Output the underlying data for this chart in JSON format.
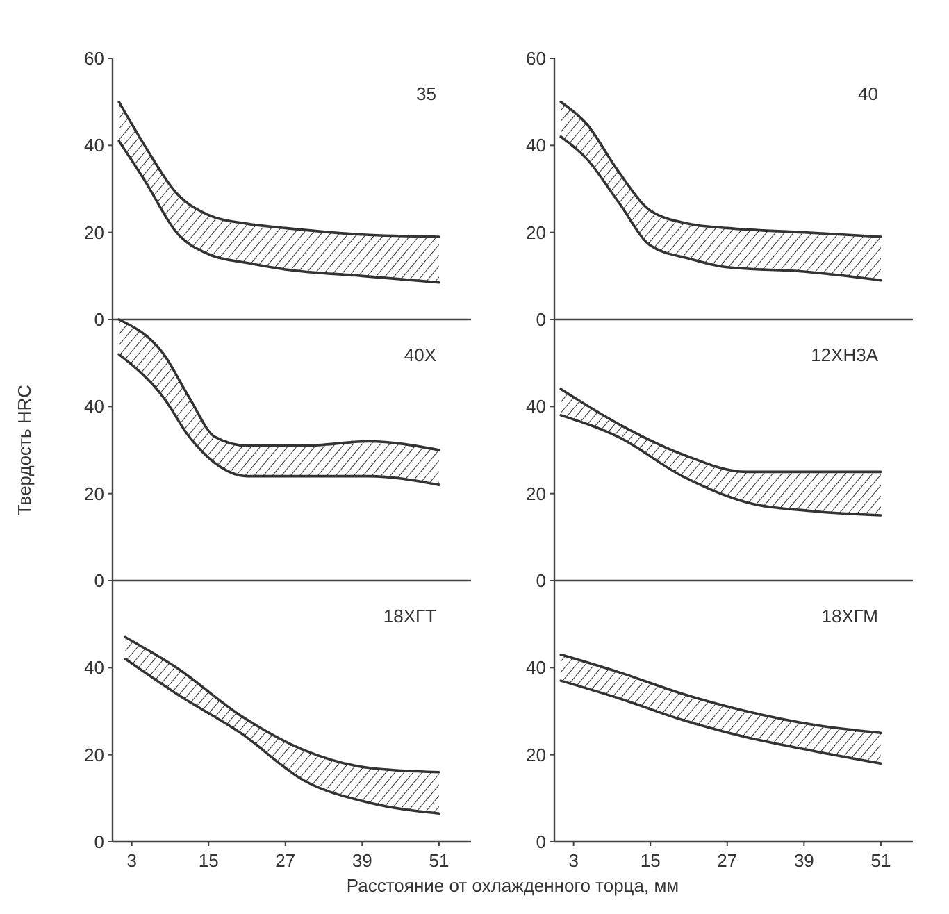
{
  "chart_data": [
    {
      "type": "line",
      "title": "35",
      "x": [
        1,
        5,
        10,
        15,
        21,
        27,
        39,
        51
      ],
      "xlim": [
        0,
        56
      ],
      "xticks": [
        3,
        15,
        27,
        39,
        51
      ],
      "ylim": [
        0,
        60
      ],
      "yticks": [
        0,
        20,
        40,
        60
      ],
      "tick_labels": "y",
      "series": [
        {
          "color": "#333333",
          "values": [
            41,
            32,
            20,
            15,
            13,
            11.5,
            10,
            8.5
          ]
        },
        {
          "color": "#333333",
          "values": [
            50,
            40,
            29,
            24,
            22,
            21,
            19.5,
            19
          ],
          "lower": [
            41,
            32,
            20,
            15,
            13,
            11.5,
            10,
            8.5
          ],
          "upper": [
            50,
            40,
            29,
            24,
            22,
            21,
            19.5,
            19
          ]
        }
      ]
    },
    {
      "type": "line",
      "title": "40",
      "x": [
        1,
        5,
        10,
        15,
        21,
        27,
        39,
        51
      ],
      "xlim": [
        0,
        56
      ],
      "xticks": [
        3,
        15,
        27,
        39,
        51
      ],
      "ylim": [
        0,
        60
      ],
      "yticks": [
        0,
        20,
        40,
        60
      ],
      "tick_labels": "y",
      "series": [
        {
          "color": "#333333",
          "values": [
            42,
            37,
            27,
            17,
            14,
            12,
            11,
            9
          ]
        },
        {
          "color": "#333333",
          "values": [
            50,
            45,
            34,
            25,
            22,
            21,
            20,
            19
          ],
          "lower": [
            42,
            37,
            27,
            17,
            14,
            12,
            11,
            9
          ],
          "upper": [
            50,
            45,
            34,
            25,
            22,
            21,
            20,
            19
          ]
        }
      ]
    },
    {
      "type": "line",
      "title": "40X",
      "ylabel": "Твердость HRC",
      "x": [
        1,
        8,
        12,
        16,
        21,
        30,
        40,
        51
      ],
      "xlim": [
        0,
        56
      ],
      "xticks": [
        3,
        15,
        27,
        39,
        51
      ],
      "ylim": [
        0,
        60
      ],
      "yticks": [
        0,
        20,
        40
      ],
      "tick_labels": "y",
      "series": [
        {
          "color": "#333333",
          "values": [
            52,
            42,
            33,
            27,
            24,
            24,
            24,
            22
          ]
        },
        {
          "color": "#333333",
          "values": [
            60,
            52,
            42,
            33,
            31,
            31,
            32,
            30
          ],
          "lower": [
            52,
            42,
            33,
            27,
            24,
            24,
            24,
            22
          ],
          "upper": [
            60,
            52,
            42,
            33,
            31,
            31,
            32,
            30
          ]
        }
      ]
    },
    {
      "type": "line",
      "title": "12ХН3А",
      "x": [
        1,
        10,
        20,
        30,
        40,
        51
      ],
      "xlim": [
        0,
        56
      ],
      "xticks": [
        3,
        15,
        27,
        39,
        51
      ],
      "ylim": [
        0,
        60
      ],
      "yticks": [
        0,
        20,
        40
      ],
      "tick_labels": "y",
      "series": [
        {
          "color": "#333333",
          "values": [
            38,
            33,
            24,
            18,
            16,
            15
          ]
        },
        {
          "color": "#333333",
          "values": [
            44,
            36,
            29,
            25,
            25,
            25
          ],
          "lower": [
            38,
            33,
            24,
            18,
            16,
            15
          ],
          "upper": [
            44,
            36,
            29,
            25,
            25,
            25
          ]
        }
      ]
    },
    {
      "type": "line",
      "title": "18ХГТ",
      "xlabel": "Расстояние от охлажденного торца, мм",
      "x": [
        2,
        10,
        20,
        30,
        40,
        51
      ],
      "xlim": [
        0,
        56
      ],
      "xticks": [
        3,
        15,
        27,
        39,
        51
      ],
      "ylim": [
        0,
        60
      ],
      "yticks": [
        0,
        20,
        40
      ],
      "series": [
        {
          "color": "#333333",
          "values": [
            42,
            34,
            25,
            14,
            9,
            6.5
          ]
        },
        {
          "color": "#333333",
          "values": [
            47,
            40,
            29,
            21,
            17,
            16
          ],
          "lower": [
            42,
            34,
            25,
            14,
            9,
            6.5
          ],
          "upper": [
            47,
            40,
            29,
            21,
            17,
            16
          ]
        }
      ]
    },
    {
      "type": "line",
      "title": "18ХГМ",
      "x": [
        1,
        10,
        20,
        30,
        40,
        51
      ],
      "xlim": [
        0,
        56
      ],
      "xticks": [
        3,
        15,
        27,
        39,
        51
      ],
      "ylim": [
        0,
        60
      ],
      "yticks": [
        0,
        20,
        40
      ],
      "series": [
        {
          "color": "#333333",
          "values": [
            37,
            33,
            28,
            24,
            21,
            18
          ]
        },
        {
          "color": "#333333",
          "values": [
            43,
            39,
            34,
            30,
            27,
            25
          ],
          "lower": [
            37,
            33,
            28,
            24,
            21,
            18
          ],
          "upper": [
            43,
            39,
            34,
            30,
            27,
            25
          ]
        }
      ]
    }
  ]
}
